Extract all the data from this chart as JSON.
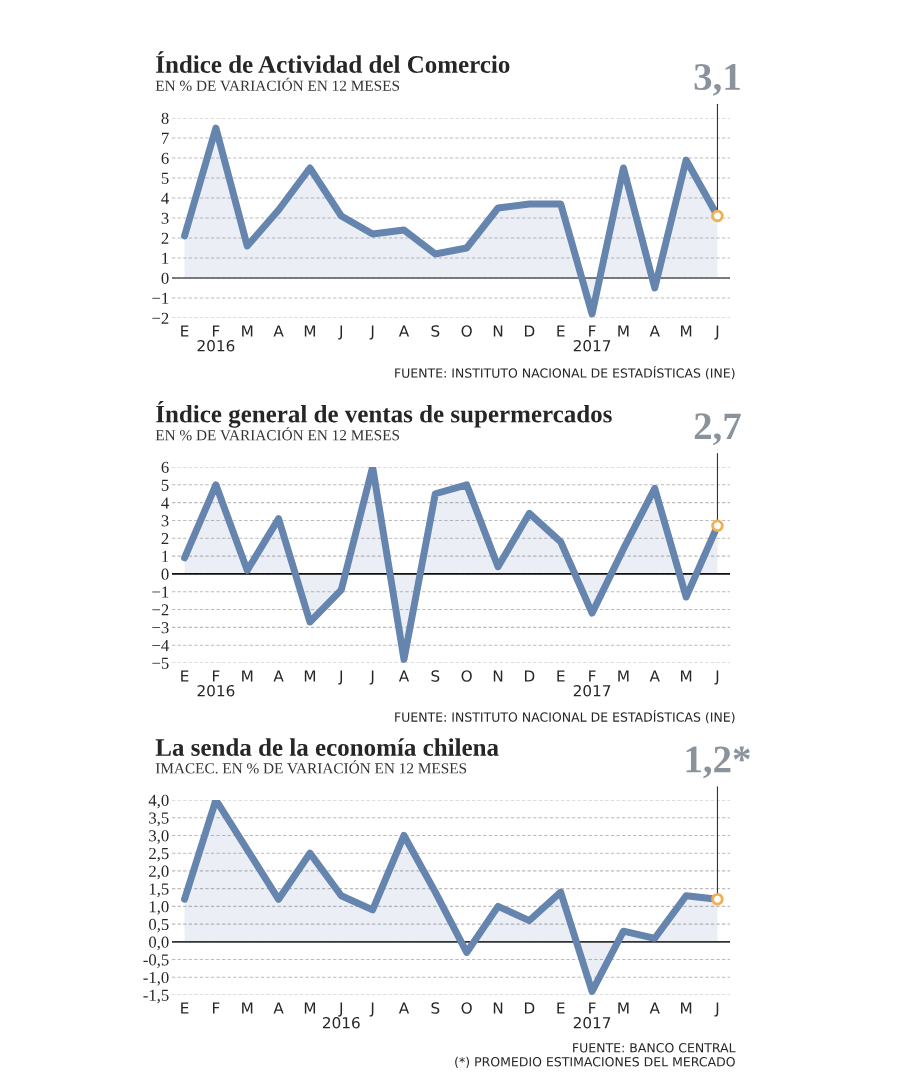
{
  "chart_data": [
    {
      "type": "area",
      "title": "Índice de Actividad del Comercio",
      "subtitle": "EN % DE VARIACIÓN EN 12 MESES",
      "categories": [
        "E",
        "F\n2016",
        "M",
        "A",
        "M",
        "J",
        "J",
        "A",
        "S",
        "O",
        "N",
        "D",
        "E",
        "F\n2017",
        "M",
        "A",
        "M",
        "J"
      ],
      "series": [
        {
          "color": "#6585ae",
          "values": [
            2.1,
            7.5,
            1.6,
            3.4,
            5.5,
            3.1,
            2.2,
            2.4,
            1.2,
            1.5,
            3.5,
            3.7,
            3.7,
            -1.8,
            5.5,
            -0.5,
            5.9,
            3.1
          ]
        }
      ],
      "ylim": [
        -2,
        8
      ],
      "yticks": [
        {
          "value": -2,
          "label": "−2"
        },
        {
          "value": -1,
          "label": "−1"
        },
        0,
        1,
        2,
        3,
        4,
        5,
        6,
        7,
        8
      ],
      "grid": "y",
      "ref_lines": [
        {
          "axis": "y",
          "value": 0,
          "color": "#555555"
        }
      ],
      "annotations": [
        {
          "text": "3,1",
          "y": 3.1
        },
        "FUENTE: INSTITUTO NACIONAL DE ESTADÍSTICAS (INE)"
      ]
    },
    {
      "type": "area",
      "title": "Índice general de ventas de supermercados",
      "subtitle": "EN % DE VARIACIÓN EN 12 MESES",
      "categories": [
        "E",
        "F\n2016",
        "M",
        "A",
        "M",
        "J",
        "J",
        "A",
        "S",
        "O",
        "N",
        "D",
        "E",
        "F\n2017",
        "M",
        "A",
        "M",
        "J"
      ],
      "series": [
        {
          "color": "#6585ae",
          "values": [
            0.9,
            5.0,
            0.2,
            3.1,
            -2.7,
            -0.9,
            6.0,
            -4.8,
            4.5,
            5.0,
            0.4,
            3.4,
            1.8,
            -2.2,
            1.4,
            4.8,
            -1.3,
            2.7
          ]
        }
      ],
      "ylim": [
        -5,
        6
      ],
      "yticks": [
        {
          "value": -5,
          "label": "−5"
        },
        {
          "value": -4,
          "label": "−4"
        },
        {
          "value": -3,
          "label": "−3"
        },
        {
          "value": -2,
          "label": "−2"
        },
        {
          "value": -1,
          "label": "−1"
        },
        0,
        1,
        2,
        3,
        4,
        5,
        6
      ],
      "grid": "y",
      "ref_lines": [
        {
          "axis": "y",
          "value": 0,
          "color": "#111111"
        }
      ],
      "annotations": [
        {
          "text": "2,7",
          "y": 2.7
        },
        "FUENTE: INSTITUTO NACIONAL DE ESTADÍSTICAS (INE)"
      ]
    },
    {
      "type": "area",
      "title": "La senda de la economía chilena",
      "subtitle": "IMACEC. EN % DE VARIACIÓN EN 12 MESES",
      "categories": [
        "E",
        "F",
        "M",
        "A",
        "M",
        "J\n2016",
        "J",
        "A",
        "S",
        "O",
        "N",
        "D",
        "E",
        "F\n2017",
        "M",
        "A",
        "M",
        "J"
      ],
      "series": [
        {
          "color": "#6585ae",
          "values": [
            1.2,
            4.0,
            2.6,
            1.2,
            2.5,
            1.3,
            0.9,
            3.0,
            1.4,
            -0.3,
            1.0,
            0.6,
            1.4,
            -1.4,
            0.3,
            0.1,
            1.3,
            1.2
          ]
        }
      ],
      "ylim": [
        -1.5,
        4.0
      ],
      "yticks": [
        {
          "value": -1.5,
          "label": "-1,5"
        },
        {
          "value": -1.0,
          "label": "-1,0"
        },
        {
          "value": -0.5,
          "label": "-0,5"
        },
        {
          "value": 0,
          "label": "0,0"
        },
        {
          "value": 0.5,
          "label": "0,5"
        },
        {
          "value": 1.0,
          "label": "1,0"
        },
        {
          "value": 1.5,
          "label": "1,5"
        },
        {
          "value": 2.0,
          "label": "2,0"
        },
        {
          "value": 2.5,
          "label": "2,5"
        },
        {
          "value": 3.0,
          "label": "3,0"
        },
        {
          "value": 3.5,
          "label": "3,5"
        },
        {
          "value": 4.0,
          "label": "4,0"
        }
      ],
      "grid": "y",
      "ref_lines": [
        {
          "axis": "y",
          "value": 0,
          "color": "#333333"
        }
      ],
      "annotations": [
        {
          "text": "1,2*",
          "y": 1.2
        },
        "FUENTE: BANCO CENTRAL\n(*) PROMEDIO ESTIMACIONES DEL MERCADO"
      ]
    }
  ]
}
